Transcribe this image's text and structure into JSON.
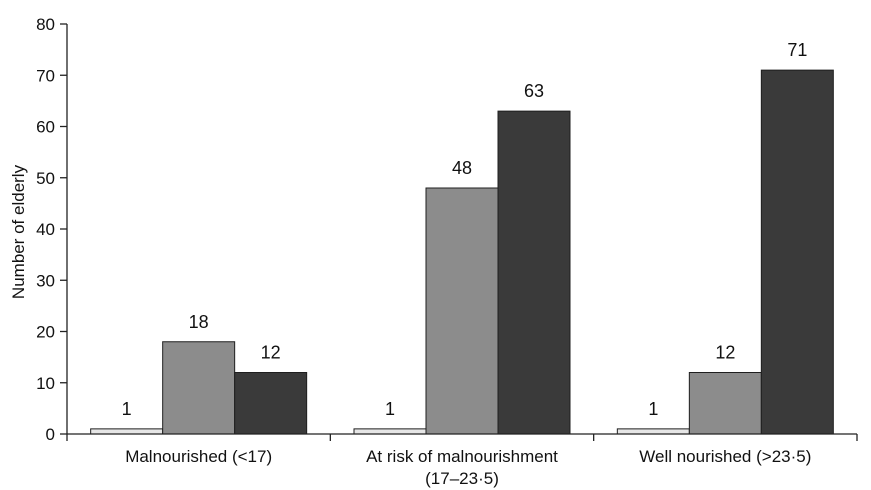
{
  "chart_data": {
    "type": "bar",
    "title": "",
    "xlabel": "",
    "ylabel": "Number of elderly",
    "ylim": [
      0,
      80
    ],
    "yticks": [
      0,
      10,
      20,
      30,
      40,
      50,
      60,
      70,
      80
    ],
    "grid": false,
    "legend": "none",
    "categories": [
      [
        "Malnourished (<17)"
      ],
      [
        "At risk of malnourishment",
        "(17–23·5)"
      ],
      [
        "Well nourished (>23·5)"
      ]
    ],
    "series": [
      {
        "values": [
          1,
          1,
          1
        ],
        "color": "#e6e6e6"
      },
      {
        "values": [
          18,
          48,
          12
        ],
        "color": "#8c8c8c"
      },
      {
        "values": [
          12,
          63,
          71
        ],
        "color": "#3a3a3a"
      }
    ]
  }
}
